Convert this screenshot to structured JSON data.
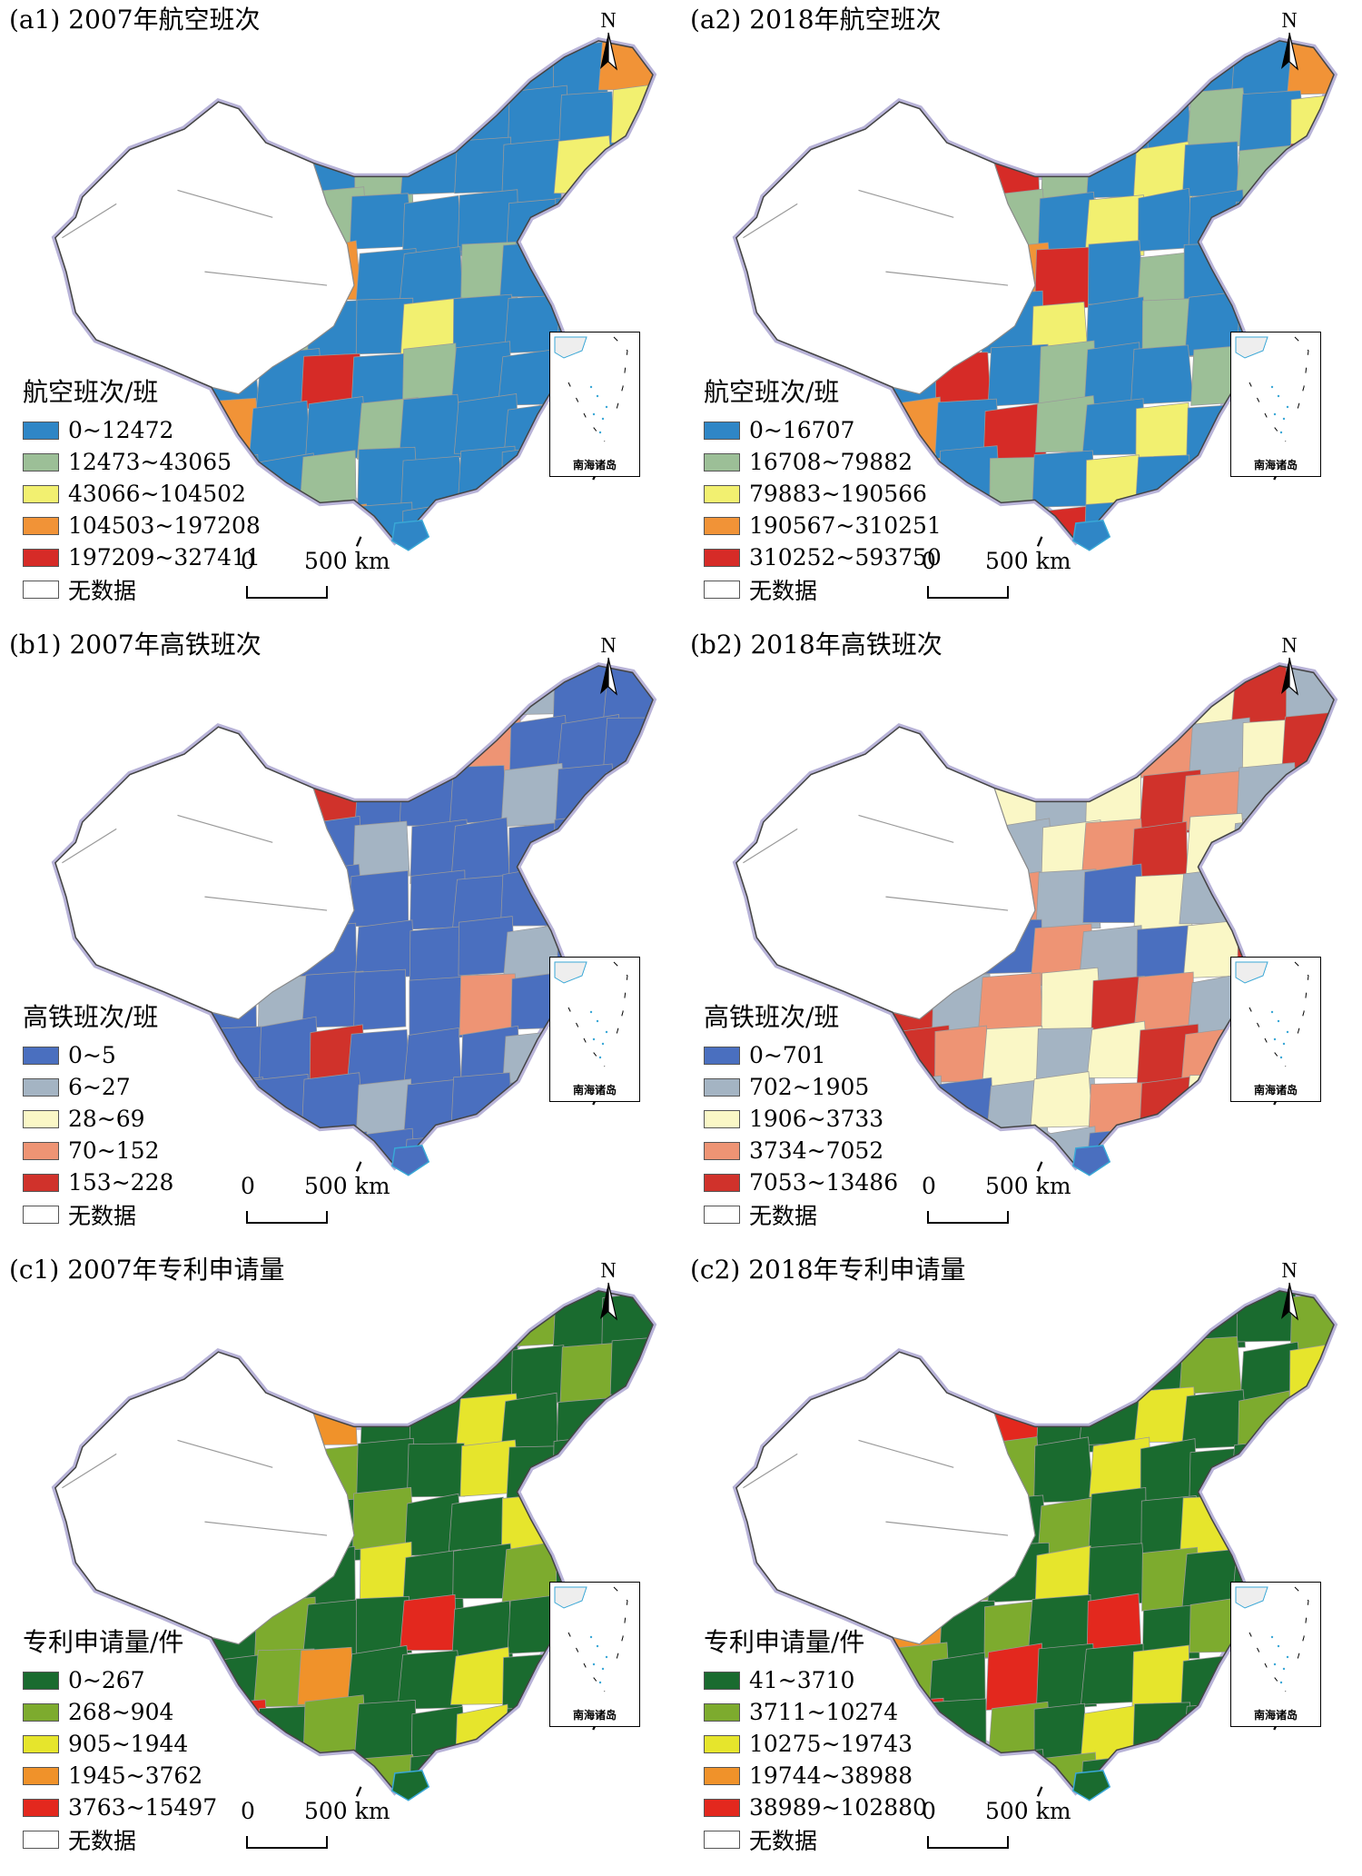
{
  "panels": [
    {
      "id": "a1",
      "title": "(a1) 2007年航空班次",
      "legend_title": "航空班次/班",
      "palette": "air",
      "fill_pattern": [
        0,
        0,
        0,
        0,
        1,
        0,
        0,
        2,
        0,
        0,
        0,
        3,
        0,
        0,
        2,
        0,
        0,
        4,
        0,
        1,
        0,
        0,
        0,
        2,
        0,
        0,
        0,
        3,
        0,
        0,
        1,
        0,
        0,
        0,
        2,
        0,
        0,
        0,
        0,
        0,
        0,
        1,
        0,
        0,
        0,
        0,
        0,
        4,
        0,
        0,
        0,
        2,
        0,
        3,
        0,
        0,
        1,
        0,
        0,
        0
      ],
      "legend_items": [
        {
          "label": "0~12472",
          "color": "#2f86c6"
        },
        {
          "label": "12473~43065",
          "color": "#9cbf97"
        },
        {
          "label": "43066~104502",
          "color": "#f2f070"
        },
        {
          "label": "104503~197208",
          "color": "#f19337"
        },
        {
          "label": "197209~327411",
          "color": "#d62b27"
        },
        {
          "label": "无数据",
          "color": "#ffffff"
        }
      ]
    },
    {
      "id": "a2",
      "title": "(a2) 2018年航空班次",
      "legend_title": "航空班次/班",
      "palette": "air",
      "fill_pattern": [
        0,
        1,
        0,
        0,
        1,
        0,
        2,
        0,
        1,
        0,
        0,
        3,
        1,
        0,
        2,
        0,
        4,
        0,
        1,
        0,
        0,
        1,
        0,
        2,
        4,
        0,
        1,
        3,
        0,
        4,
        1,
        0,
        2,
        0,
        1,
        4,
        0,
        3,
        0,
        1,
        0,
        1,
        0,
        2,
        0,
        0,
        0,
        4,
        0,
        1,
        0,
        2,
        0,
        3,
        4,
        0,
        1,
        0,
        2,
        0
      ],
      "legend_items": [
        {
          "label": "0~16707",
          "color": "#2f86c6"
        },
        {
          "label": "16708~79882",
          "color": "#9cbf97"
        },
        {
          "label": "79883~190566",
          "color": "#f2f070"
        },
        {
          "label": "190567~310251",
          "color": "#f19337"
        },
        {
          "label": "310252~593750",
          "color": "#d62b27"
        },
        {
          "label": "无数据",
          "color": "#ffffff"
        }
      ]
    },
    {
      "id": "b1",
      "title": "(b1) 2007年高铁班次",
      "legend_title": "高铁班次/班",
      "palette": "hsr",
      "fill_pattern": [
        0,
        0,
        0,
        0,
        1,
        0,
        0,
        0,
        0,
        1,
        0,
        0,
        0,
        0,
        0,
        0,
        1,
        0,
        0,
        0,
        3,
        0,
        0,
        0,
        1,
        0,
        0,
        0,
        0,
        4,
        0,
        0,
        0,
        1,
        0,
        0,
        2,
        0,
        0,
        0,
        0,
        0,
        1,
        0,
        0,
        0,
        0,
        0,
        0,
        0,
        0,
        1,
        0,
        0,
        0,
        0,
        0,
        0,
        0,
        0
      ],
      "legend_items": [
        {
          "label": "0~5",
          "color": "#4a6fbf"
        },
        {
          "label": "6~27",
          "color": "#a4b4c3"
        },
        {
          "label": "28~69",
          "color": "#faf7c6"
        },
        {
          "label": "70~152",
          "color": "#ee9474"
        },
        {
          "label": "153~228",
          "color": "#d0322b"
        },
        {
          "label": "无数据",
          "color": "#ffffff"
        }
      ]
    },
    {
      "id": "b2",
      "title": "(b2) 2018年高铁班次",
      "legend_title": "高铁班次/班",
      "palette": "hsr",
      "fill_pattern": [
        0,
        0,
        0,
        1,
        2,
        0,
        3,
        1,
        0,
        2,
        4,
        1,
        3,
        0,
        2,
        4,
        1,
        3,
        2,
        4,
        3,
        1,
        2,
        4,
        3,
        2,
        1,
        4,
        3,
        2,
        1,
        2,
        4,
        3,
        1,
        2,
        3,
        4,
        2,
        1,
        0,
        1,
        2,
        3,
        4,
        2,
        1,
        3,
        2,
        4,
        0,
        1,
        2,
        3,
        1,
        0,
        2,
        1,
        0,
        0
      ],
      "legend_items": [
        {
          "label": "0~701",
          "color": "#4a6fbf"
        },
        {
          "label": "702~1905",
          "color": "#a4b4c3"
        },
        {
          "label": "1906~3733",
          "color": "#faf7c6"
        },
        {
          "label": "3734~7052",
          "color": "#ee9474"
        },
        {
          "label": "7053~13486",
          "color": "#d0322b"
        },
        {
          "label": "无数据",
          "color": "#ffffff"
        }
      ]
    },
    {
      "id": "c1",
      "title": "(c1) 2007年专利申请量",
      "legend_title": "专利申请量/件",
      "palette": "patent",
      "fill_pattern": [
        0,
        0,
        0,
        1,
        0,
        0,
        2,
        0,
        0,
        1,
        0,
        0,
        0,
        2,
        0,
        0,
        1,
        0,
        0,
        4,
        0,
        0,
        1,
        0,
        2,
        0,
        0,
        0,
        1,
        3,
        0,
        0,
        2,
        0,
        0,
        1,
        0,
        0,
        0,
        4,
        0,
        1,
        0,
        0,
        2,
        0,
        0,
        1,
        0,
        0,
        3,
        0,
        0,
        0,
        1,
        0,
        0,
        2,
        0,
        0
      ],
      "legend_items": [
        {
          "label": "0~267",
          "color": "#1a6b2f"
        },
        {
          "label": "268~904",
          "color": "#7dab2e"
        },
        {
          "label": "905~1944",
          "color": "#e6e52c"
        },
        {
          "label": "1945~3762",
          "color": "#f0922a"
        },
        {
          "label": "3763~15497",
          "color": "#e3281e"
        },
        {
          "label": "无数据",
          "color": "#ffffff"
        }
      ]
    },
    {
      "id": "c2",
      "title": "(c2) 2018年专利申请量",
      "legend_title": "专利申请量/件",
      "palette": "patent",
      "fill_pattern": [
        0,
        0,
        1,
        0,
        1,
        0,
        2,
        0,
        1,
        0,
        0,
        1,
        0,
        2,
        0,
        3,
        0,
        1,
        0,
        4,
        0,
        1,
        0,
        2,
        0,
        3,
        0,
        1,
        0,
        4,
        0,
        0,
        2,
        0,
        1,
        3,
        0,
        0,
        1,
        4,
        0,
        1,
        0,
        2,
        0,
        0,
        0,
        1,
        0,
        3,
        0,
        0,
        2,
        0,
        1,
        0,
        0,
        2,
        0,
        0
      ],
      "legend_items": [
        {
          "label": "41~3710",
          "color": "#1a6b2f"
        },
        {
          "label": "3711~10274",
          "color": "#7dab2e"
        },
        {
          "label": "10275~19743",
          "color": "#e6e52c"
        },
        {
          "label": "19744~38988",
          "color": "#f0922a"
        },
        {
          "label": "38989~102880",
          "color": "#e3281e"
        },
        {
          "label": "无数据",
          "color": "#ffffff"
        }
      ]
    }
  ],
  "north_label": "N",
  "scale": {
    "zero": "0",
    "distance": "500 km"
  },
  "inset_label": "南海诸岛"
}
